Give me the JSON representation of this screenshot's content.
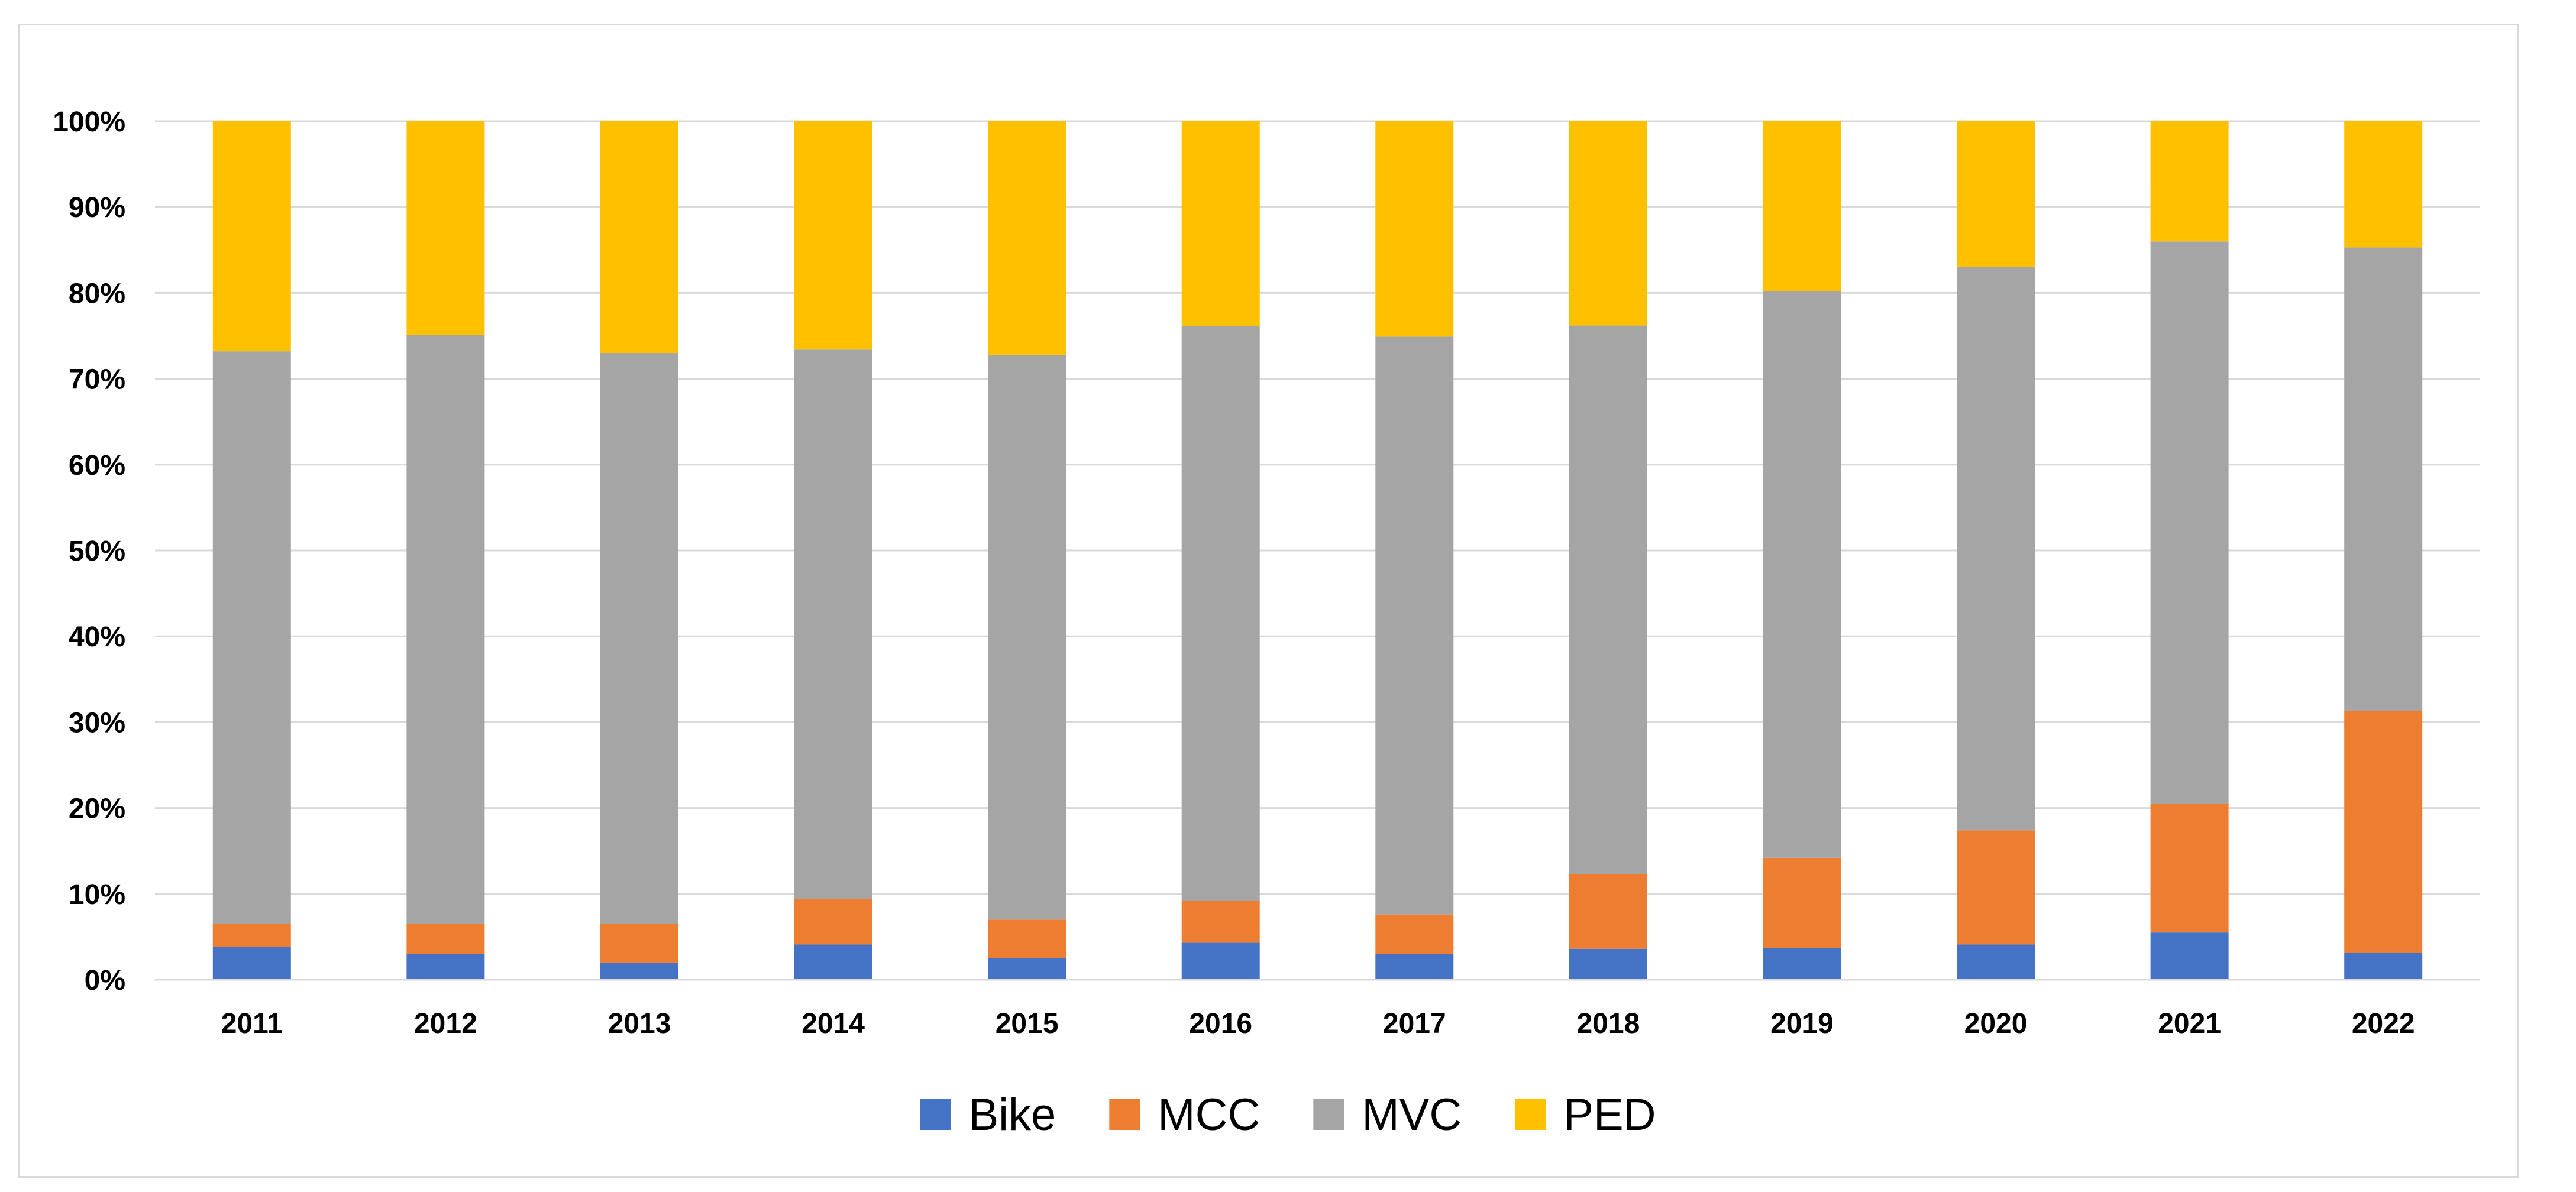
{
  "chart_data": {
    "type": "bar",
    "stacked": true,
    "percent": true,
    "title": "",
    "xlabel": "",
    "ylabel": "",
    "ylim": [
      0,
      100
    ],
    "yticks": [
      0,
      10,
      20,
      30,
      40,
      50,
      60,
      70,
      80,
      90,
      100
    ],
    "ytick_labels": [
      "0%",
      "10%",
      "20%",
      "30%",
      "40%",
      "50%",
      "60%",
      "70%",
      "80%",
      "90%",
      "100%"
    ],
    "grid": true,
    "legend_position": "bottom",
    "categories": [
      "2011",
      "2012",
      "2013",
      "2014",
      "2015",
      "2016",
      "2017",
      "2018",
      "2019",
      "2020",
      "2021",
      "2022"
    ],
    "series": [
      {
        "name": "Bike",
        "color": "#4472C4",
        "values": [
          3.8,
          3.0,
          2.0,
          4.1,
          2.5,
          4.3,
          3.0,
          3.6,
          3.7,
          4.1,
          5.5,
          3.1
        ]
      },
      {
        "name": "MCC",
        "color": "#ED7D31",
        "values": [
          2.7,
          3.5,
          4.5,
          5.3,
          4.5,
          4.9,
          4.6,
          8.7,
          10.5,
          13.3,
          15.0,
          28.2
        ]
      },
      {
        "name": "MVC",
        "color": "#A5A5A5",
        "values": [
          66.7,
          68.6,
          66.5,
          64.0,
          65.8,
          66.9,
          67.3,
          63.9,
          66.0,
          65.6,
          65.5,
          54.0
        ]
      },
      {
        "name": "PED",
        "color": "#FFC000",
        "values": [
          26.8,
          24.9,
          27.0,
          26.6,
          27.2,
          23.9,
          25.1,
          23.8,
          19.8,
          17.0,
          14.0,
          14.7
        ]
      }
    ]
  }
}
